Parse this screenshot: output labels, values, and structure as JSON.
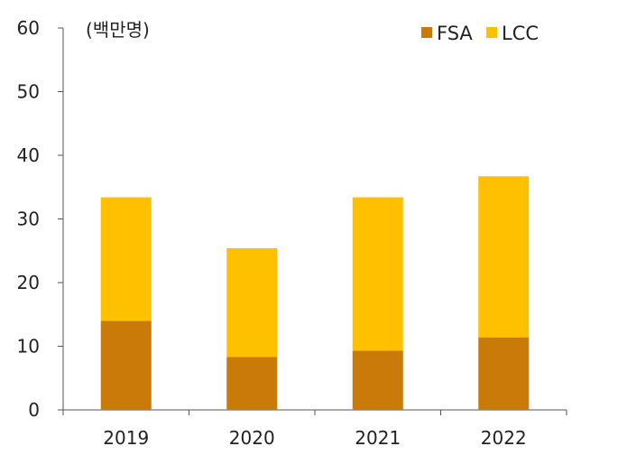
{
  "chart_data": {
    "type": "bar",
    "stacked": true,
    "unit_label": "(백만명)",
    "categories": [
      "2019",
      "2020",
      "2021",
      "2022"
    ],
    "series": [
      {
        "name": "FSA",
        "color": "#C97A08",
        "values": [
          14.0,
          8.3,
          9.3,
          11.4
        ]
      },
      {
        "name": "LCC",
        "color": "#FFC000",
        "values": [
          19.4,
          17.1,
          24.1,
          25.3
        ]
      }
    ],
    "ylim": [
      0,
      60
    ],
    "yticks": [
      "0",
      "10",
      "20",
      "30",
      "40",
      "50",
      "60"
    ],
    "grid": false,
    "legend_position": "top-right"
  }
}
